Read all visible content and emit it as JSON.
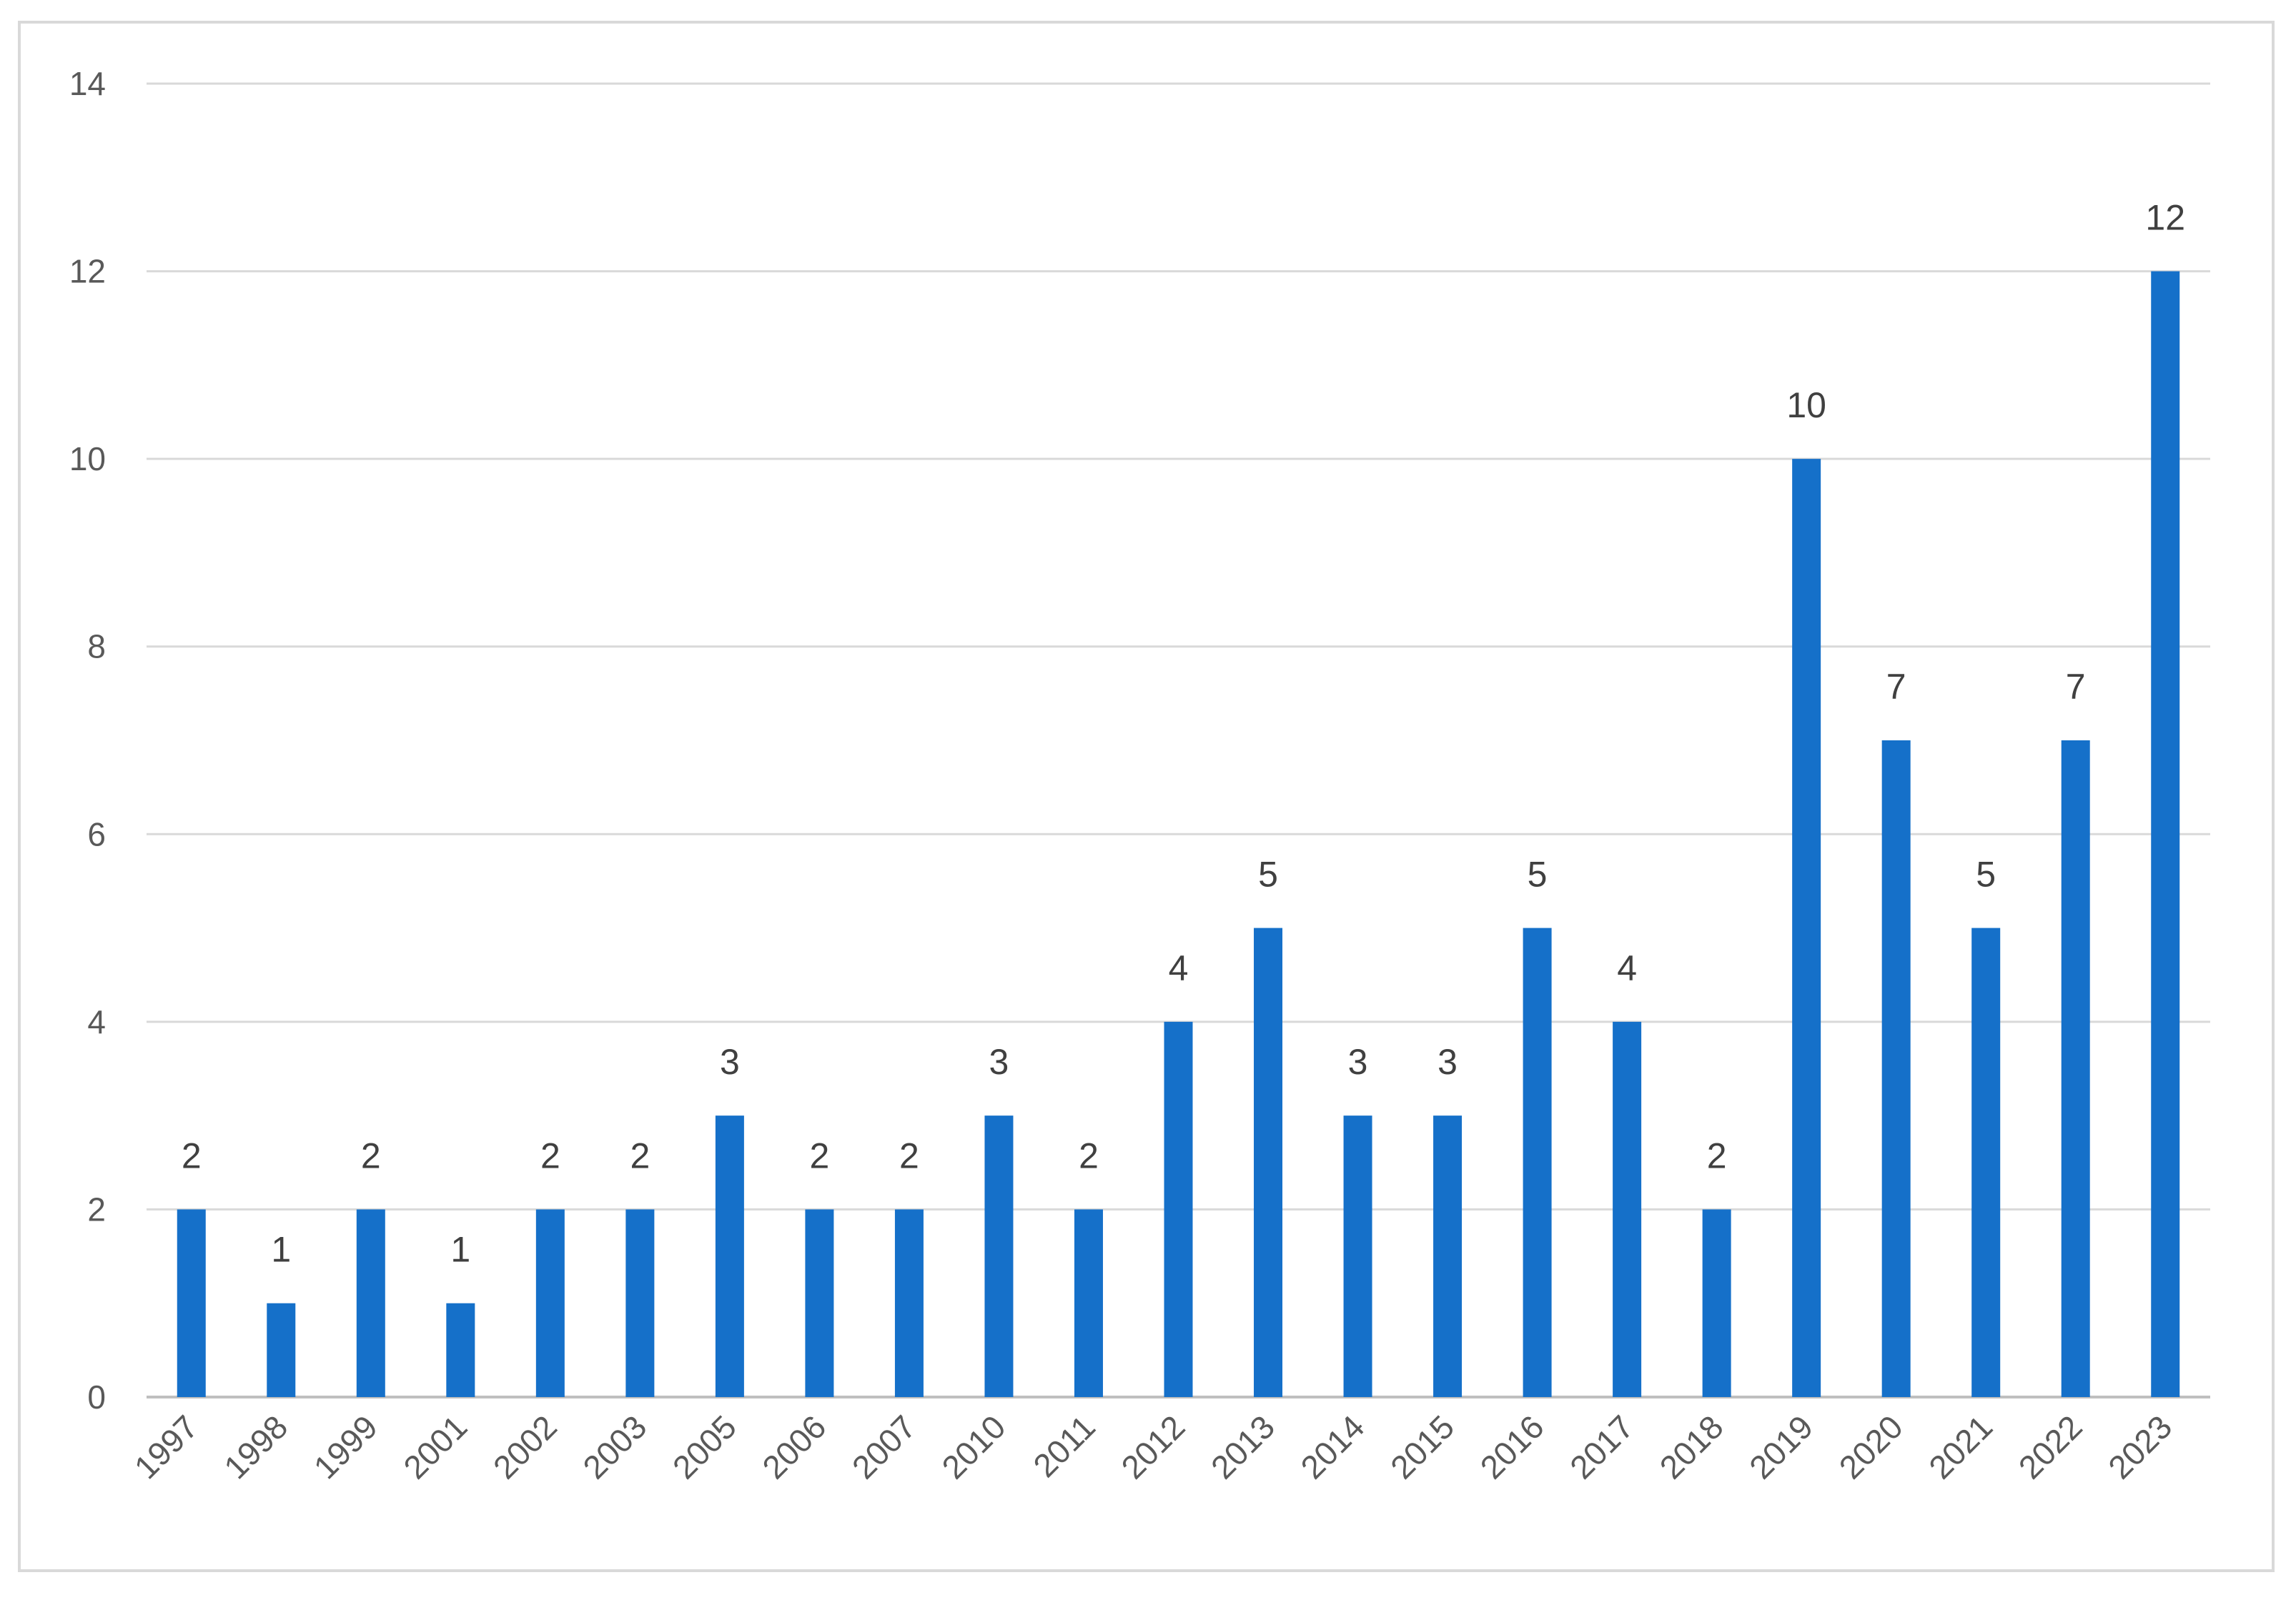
{
  "chart_data": {
    "type": "bar",
    "title": "",
    "xlabel": "",
    "ylabel": "",
    "categories": [
      "1997",
      "1998",
      "1999",
      "2001",
      "2002",
      "2003",
      "2005",
      "2006",
      "2007",
      "2010",
      "2011",
      "2012",
      "2013",
      "2014",
      "2015",
      "2016",
      "2017",
      "2018",
      "2019",
      "2020",
      "2021",
      "2022",
      "2023"
    ],
    "values": [
      2,
      1,
      2,
      1,
      2,
      2,
      3,
      2,
      2,
      3,
      2,
      4,
      5,
      3,
      3,
      5,
      4,
      2,
      10,
      7,
      5,
      7,
      12
    ],
    "ylim": [
      0,
      14
    ],
    "yticks": [
      0,
      2,
      4,
      6,
      8,
      10,
      12,
      14
    ],
    "grid": true,
    "legend": "none",
    "data_labels": true,
    "bar_color": "#1570c9",
    "grid_color": "#d9d9d9"
  }
}
